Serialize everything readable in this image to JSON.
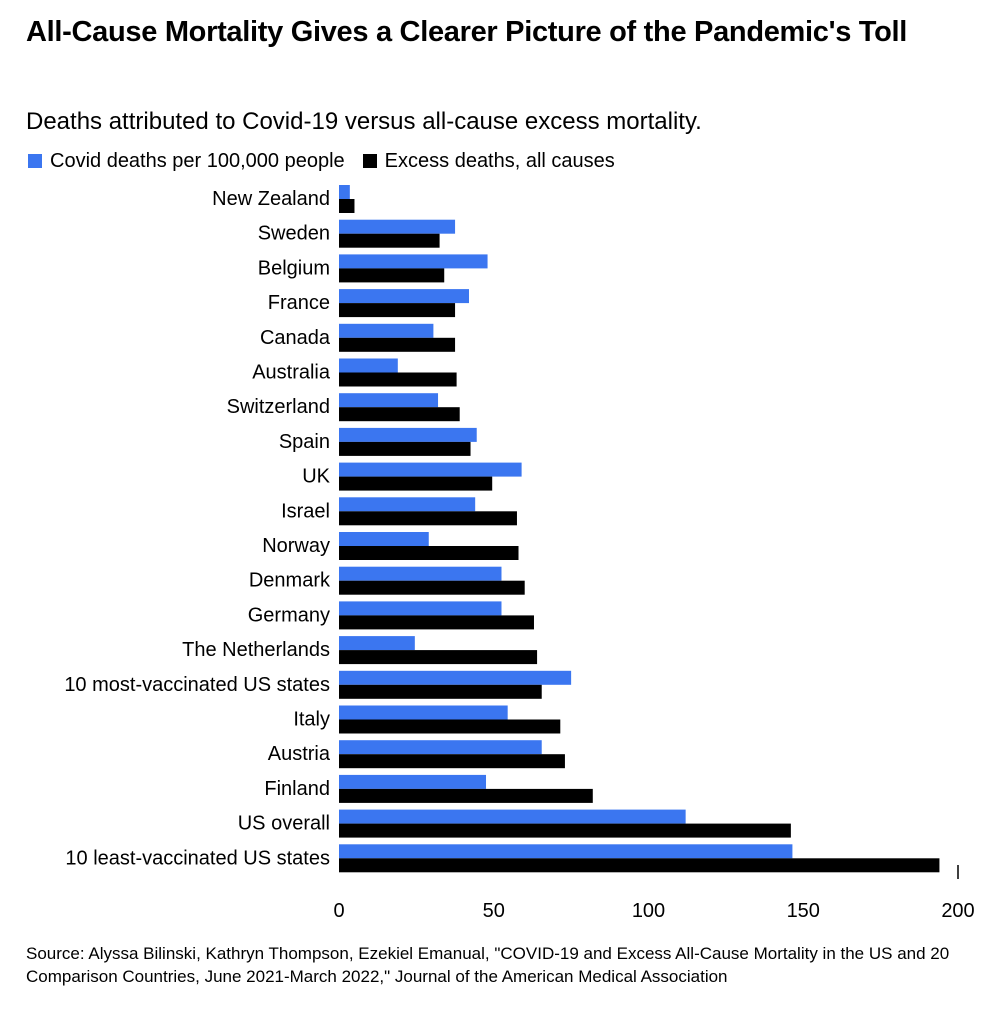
{
  "title": "All-Cause Mortality Gives a Clearer Picture of the Pandemic's Toll",
  "subtitle": "Deaths attributed to Covid-19 versus all-cause excess mortality.",
  "source": "Source: Alyssa Bilinski, Kathryn Thompson, Ezekiel Emanual, \"COVID-19 and Excess All-Cause Mortality in the US and 20 Comparison Countries, June 2021-March 2022,\" Journal of the American Medical Association",
  "colors": {
    "covid": "#3b76f0",
    "excess": "#000000"
  },
  "chart_data": {
    "type": "bar",
    "orientation": "horizontal",
    "categories": [
      "New Zealand",
      "Sweden",
      "Belgium",
      "France",
      "Canada",
      "Australia",
      "Switzerland",
      "Spain",
      "UK",
      "Israel",
      "Norway",
      "Denmark",
      "Germany",
      "The Netherlands",
      "10 most-vaccinated US states",
      "Italy",
      "Austria",
      "Finland",
      "US overall",
      "10 least-vaccinated US states"
    ],
    "series": [
      {
        "name": "Covid deaths per 100,000 people",
        "color": "#3b76f0",
        "values": [
          3.5,
          37.5,
          48,
          42,
          30.5,
          19,
          32,
          44.5,
          59,
          44,
          29,
          52.5,
          52.5,
          24.5,
          75,
          54.5,
          65.5,
          47.5,
          112,
          146.5
        ]
      },
      {
        "name": "Excess deaths, all causes",
        "color": "#000000",
        "values": [
          5,
          32.5,
          34,
          37.5,
          37.5,
          38,
          39,
          42.5,
          49.5,
          57.5,
          58,
          60,
          63,
          64,
          65.5,
          71.5,
          73,
          82,
          146,
          194
        ]
      }
    ],
    "x_ticks": [
      "0",
      "50",
      "100",
      "150",
      "200"
    ],
    "xlim": [
      0,
      200
    ],
    "legend_position": "top-left",
    "grid": false
  }
}
